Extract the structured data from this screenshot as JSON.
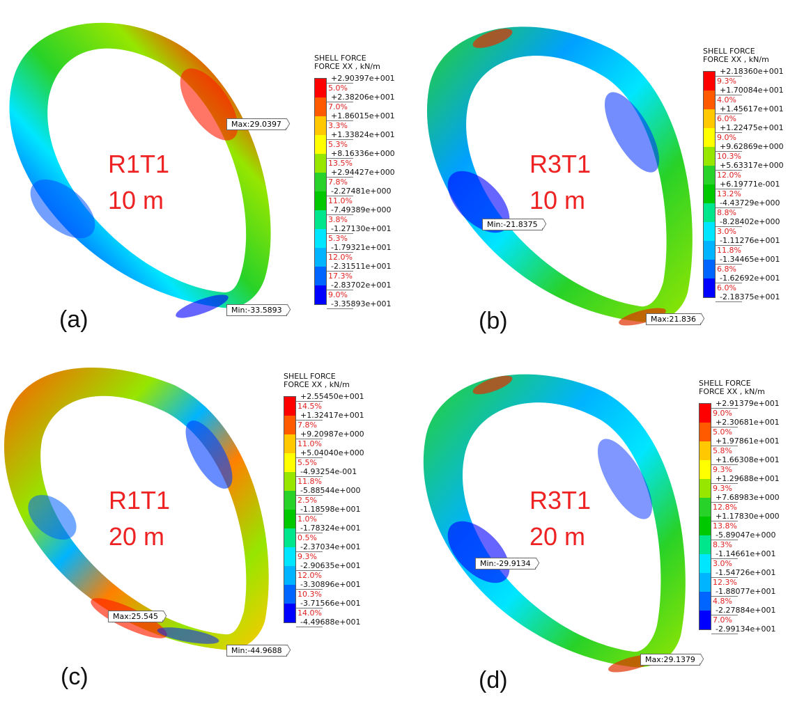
{
  "colors": [
    "#ff0000",
    "#ff5a00",
    "#ffc800",
    "#ffff00",
    "#96e600",
    "#28d228",
    "#00c800",
    "#00e68c",
    "#00e6ff",
    "#00b4ff",
    "#0064ff",
    "#0000ff"
  ],
  "legend_title_1": "SHELL FORCE",
  "legend_title_2": "FORCE XX , kN/m",
  "panels": [
    {
      "case": "R1T1",
      "depth": "10 m",
      "sub": "(a)",
      "levels": [
        "+2.90397e+001",
        "+2.38206e+001",
        "+1.86015e+001",
        "+1.33824e+001",
        "+8.16336e+000",
        "+2.94427e+000",
        "-2.27481e+000",
        "-7.49389e+000",
        "-1.27130e+001",
        "-1.79321e+001",
        "-2.31511e+001",
        "-2.83702e+001",
        "-3.35893e+001"
      ],
      "pcts": [
        "5.0%",
        "7.0%",
        "3.3%",
        "5.3%",
        "13.5%",
        "7.8%",
        "11.0%",
        "3.8%",
        "5.3%",
        "12.0%",
        "17.3%",
        "9.0%"
      ],
      "max_label": "Max:29.0397",
      "min_label": "Min:-33.5893"
    },
    {
      "case": "R3T1",
      "depth": "10 m",
      "sub": "(b)",
      "levels": [
        "+2.18360e+001",
        "+1.70084e+001",
        "+1.45617e+001",
        "+1.22475e+001",
        "+9.62869e+000",
        "+5.63317e+000",
        "+6.19771e-001",
        "-4.43729e+000",
        "-8.28402e+000",
        "-1.11276e+001",
        "-1.34465e+001",
        "-1.62692e+001",
        "-2.18375e+001"
      ],
      "pcts": [
        "9.3%",
        "4.0%",
        "6.0%",
        "9.0%",
        "10.3%",
        "12.0%",
        "13.2%",
        "8.8%",
        "3.0%",
        "11.8%",
        "6.8%",
        "6.0%"
      ],
      "max_label": "Max:21.836",
      "min_label": "Min:-21.8375"
    },
    {
      "case": "R1T1",
      "depth": "20 m",
      "sub": "(c)",
      "levels": [
        "+2.55450e+001",
        "+1.32417e+001",
        "+9.20987e+000",
        "+5.04040e+000",
        "-4.93254e-001",
        "-5.88544e+000",
        "-1.18598e+001",
        "-1.78324e+001",
        "-2.37034e+001",
        "-2.90635e+001",
        "-3.30896e+001",
        "-3.71566e+001",
        "-4.49688e+001"
      ],
      "pcts": [
        "14.5%",
        "7.8%",
        "11.0%",
        "5.5%",
        "11.8%",
        "2.5%",
        "1.0%",
        "0.5%",
        "9.3%",
        "12.0%",
        "10.3%",
        "14.0%"
      ],
      "max_label": "Max:25.545",
      "min_label": "Min:-44.9688"
    },
    {
      "case": "R3T1",
      "depth": "20 m",
      "sub": "(d)",
      "levels": [
        "+2.91379e+001",
        "+2.30681e+001",
        "+1.97861e+001",
        "+1.66308e+001",
        "+1.29688e+001",
        "+7.68983e+000",
        "+1.17830e+000",
        "-5.89047e+000",
        "-1.14661e+001",
        "-1.54726e+001",
        "-1.88077e+001",
        "-2.27884e+001",
        "-2.99134e+001"
      ],
      "pcts": [
        "9.0%",
        "5.0%",
        "5.8%",
        "9.3%",
        "9.3%",
        "12.8%",
        "13.8%",
        "8.3%",
        "3.0%",
        "12.3%",
        "4.8%",
        "7.0%"
      ],
      "max_label": "Max:29.1379",
      "min_label": "Min:-29.9134"
    }
  ]
}
